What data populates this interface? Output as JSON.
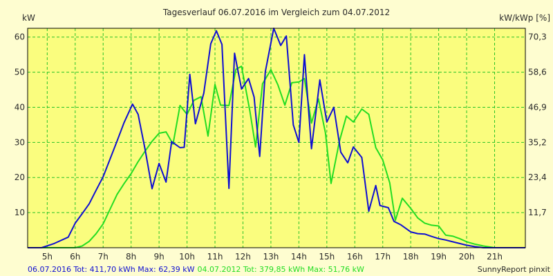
{
  "title": "Tagesverlauf 06.07.2016 im Vergleich zum 04.07.2012",
  "left_axis_label": "kW",
  "right_axis_label": "kW/kWp [%]",
  "footer": {
    "series1": "06.07.2016 Tot: 411,70 kWh Max: 62,39 kW",
    "series2": "04.07.2012 Tot: 379,85 kWh Max: 51,76 kW",
    "credit": "SunnyReport pinxit"
  },
  "colors": {
    "background": "#fefdd0",
    "plot_area": "#fafd7e",
    "grid": "#27c227",
    "series1": "#0e0ed2",
    "series2": "#22dd22"
  },
  "chart_data": {
    "type": "line",
    "xlim": [
      4.3,
      22.1
    ],
    "ylim": [
      0,
      62.5
    ],
    "grid": true,
    "x_ticks": [
      "5h",
      "6h",
      "7h",
      "8h",
      "9h",
      "10h",
      "11h",
      "12h",
      "13h",
      "14h",
      "15h",
      "16h",
      "17h",
      "18h",
      "19h",
      "20h",
      "21h"
    ],
    "x_tick_values": [
      5,
      6,
      7,
      8,
      9,
      10,
      11,
      12,
      13,
      14,
      15,
      16,
      17,
      18,
      19,
      20,
      21
    ],
    "y_ticks_left": [
      "10",
      "20",
      "30",
      "40",
      "50",
      "60"
    ],
    "y_tick_values_left": [
      10,
      20,
      30,
      40,
      50,
      60
    ],
    "y_ticks_right": [
      "11,7",
      "23,4",
      "35,2",
      "46,9",
      "58,6",
      "70,3"
    ],
    "series": [
      {
        "points": [
          [
            4.3,
            0
          ],
          [
            4.8,
            0
          ],
          [
            5.25,
            1.2
          ],
          [
            5.75,
            3
          ],
          [
            6.0,
            7
          ],
          [
            6.25,
            9.7
          ],
          [
            6.5,
            12.5
          ],
          [
            6.75,
            16.4
          ],
          [
            7.0,
            20.2
          ],
          [
            7.25,
            25.3
          ],
          [
            7.5,
            30.4
          ],
          [
            7.75,
            35.7
          ],
          [
            8.05,
            40.9
          ],
          [
            8.25,
            38
          ],
          [
            8.5,
            28
          ],
          [
            8.75,
            16.8
          ],
          [
            9.0,
            24
          ],
          [
            9.25,
            18.7
          ],
          [
            9.45,
            30.2
          ],
          [
            9.75,
            28.5
          ],
          [
            9.9,
            28.6
          ],
          [
            10.1,
            49.4
          ],
          [
            10.3,
            35.3
          ],
          [
            10.6,
            44
          ],
          [
            10.85,
            58.1
          ],
          [
            11.05,
            61.8
          ],
          [
            11.25,
            57.9
          ],
          [
            11.5,
            16.9
          ],
          [
            11.7,
            55.4
          ],
          [
            11.95,
            45.2
          ],
          [
            12.2,
            48.2
          ],
          [
            12.4,
            42.9
          ],
          [
            12.6,
            26
          ],
          [
            12.8,
            50.1
          ],
          [
            13.1,
            62.5
          ],
          [
            13.35,
            57.6
          ],
          [
            13.55,
            60.3
          ],
          [
            13.8,
            35
          ],
          [
            14.0,
            30
          ],
          [
            14.2,
            55
          ],
          [
            14.45,
            28.2
          ],
          [
            14.75,
            47.8
          ],
          [
            15.0,
            35.8
          ],
          [
            15.25,
            40
          ],
          [
            15.5,
            27.2
          ],
          [
            15.75,
            24.2
          ],
          [
            15.95,
            28.7
          ],
          [
            16.25,
            25.7
          ],
          [
            16.5,
            10.4
          ],
          [
            16.75,
            17.7
          ],
          [
            16.9,
            12
          ],
          [
            17.2,
            11.4
          ],
          [
            17.4,
            7.5
          ],
          [
            17.65,
            6.5
          ],
          [
            18.0,
            4.5
          ],
          [
            18.25,
            4.0
          ],
          [
            18.5,
            3.9
          ],
          [
            18.75,
            3.2
          ],
          [
            19.0,
            2.6
          ],
          [
            19.25,
            2.2
          ],
          [
            19.5,
            1.7
          ],
          [
            19.75,
            1.2
          ],
          [
            20.0,
            0.7
          ],
          [
            20.3,
            0.3
          ],
          [
            20.6,
            0
          ],
          [
            22.1,
            0
          ]
        ]
      },
      {
        "points": [
          [
            4.3,
            0
          ],
          [
            6.0,
            0
          ],
          [
            6.25,
            0.5
          ],
          [
            6.5,
            1.8
          ],
          [
            6.75,
            4
          ],
          [
            7.0,
            6.8
          ],
          [
            7.25,
            11
          ],
          [
            7.5,
            15.2
          ],
          [
            7.75,
            18.3
          ],
          [
            8.0,
            21.1
          ],
          [
            8.25,
            24.5
          ],
          [
            8.5,
            27.5
          ],
          [
            8.75,
            30.3
          ],
          [
            9.0,
            32.6
          ],
          [
            9.25,
            33
          ],
          [
            9.5,
            29.5
          ],
          [
            9.75,
            40.5
          ],
          [
            10.0,
            38
          ],
          [
            10.25,
            42
          ],
          [
            10.5,
            43
          ],
          [
            10.75,
            31.8
          ],
          [
            11.0,
            46.5
          ],
          [
            11.2,
            40.6
          ],
          [
            11.5,
            40.5
          ],
          [
            11.75,
            50.8
          ],
          [
            11.95,
            51.7
          ],
          [
            12.25,
            38.8
          ],
          [
            12.45,
            28.7
          ],
          [
            12.7,
            46.7
          ],
          [
            13.0,
            50.7
          ],
          [
            13.25,
            46.4
          ],
          [
            13.5,
            40.6
          ],
          [
            13.75,
            47
          ],
          [
            14.0,
            47.2
          ],
          [
            14.2,
            48.2
          ],
          [
            14.45,
            35.5
          ],
          [
            14.7,
            42.4
          ],
          [
            14.95,
            32.7
          ],
          [
            15.15,
            18.3
          ],
          [
            15.45,
            30.3
          ],
          [
            15.7,
            37.5
          ],
          [
            15.95,
            35.8
          ],
          [
            16.25,
            39.5
          ],
          [
            16.5,
            38
          ],
          [
            16.75,
            28.5
          ],
          [
            17.0,
            25
          ],
          [
            17.25,
            18.5
          ],
          [
            17.45,
            7.8
          ],
          [
            17.7,
            14.1
          ],
          [
            18.0,
            11.2
          ],
          [
            18.25,
            8.5
          ],
          [
            18.5,
            7
          ],
          [
            18.75,
            6.4
          ],
          [
            19.0,
            6.2
          ],
          [
            19.25,
            3.6
          ],
          [
            19.5,
            3.3
          ],
          [
            19.75,
            2.6
          ],
          [
            20.0,
            1.7
          ],
          [
            20.3,
            1
          ],
          [
            20.6,
            0.5
          ],
          [
            21.0,
            0
          ],
          [
            22.1,
            0
          ]
        ]
      }
    ]
  }
}
